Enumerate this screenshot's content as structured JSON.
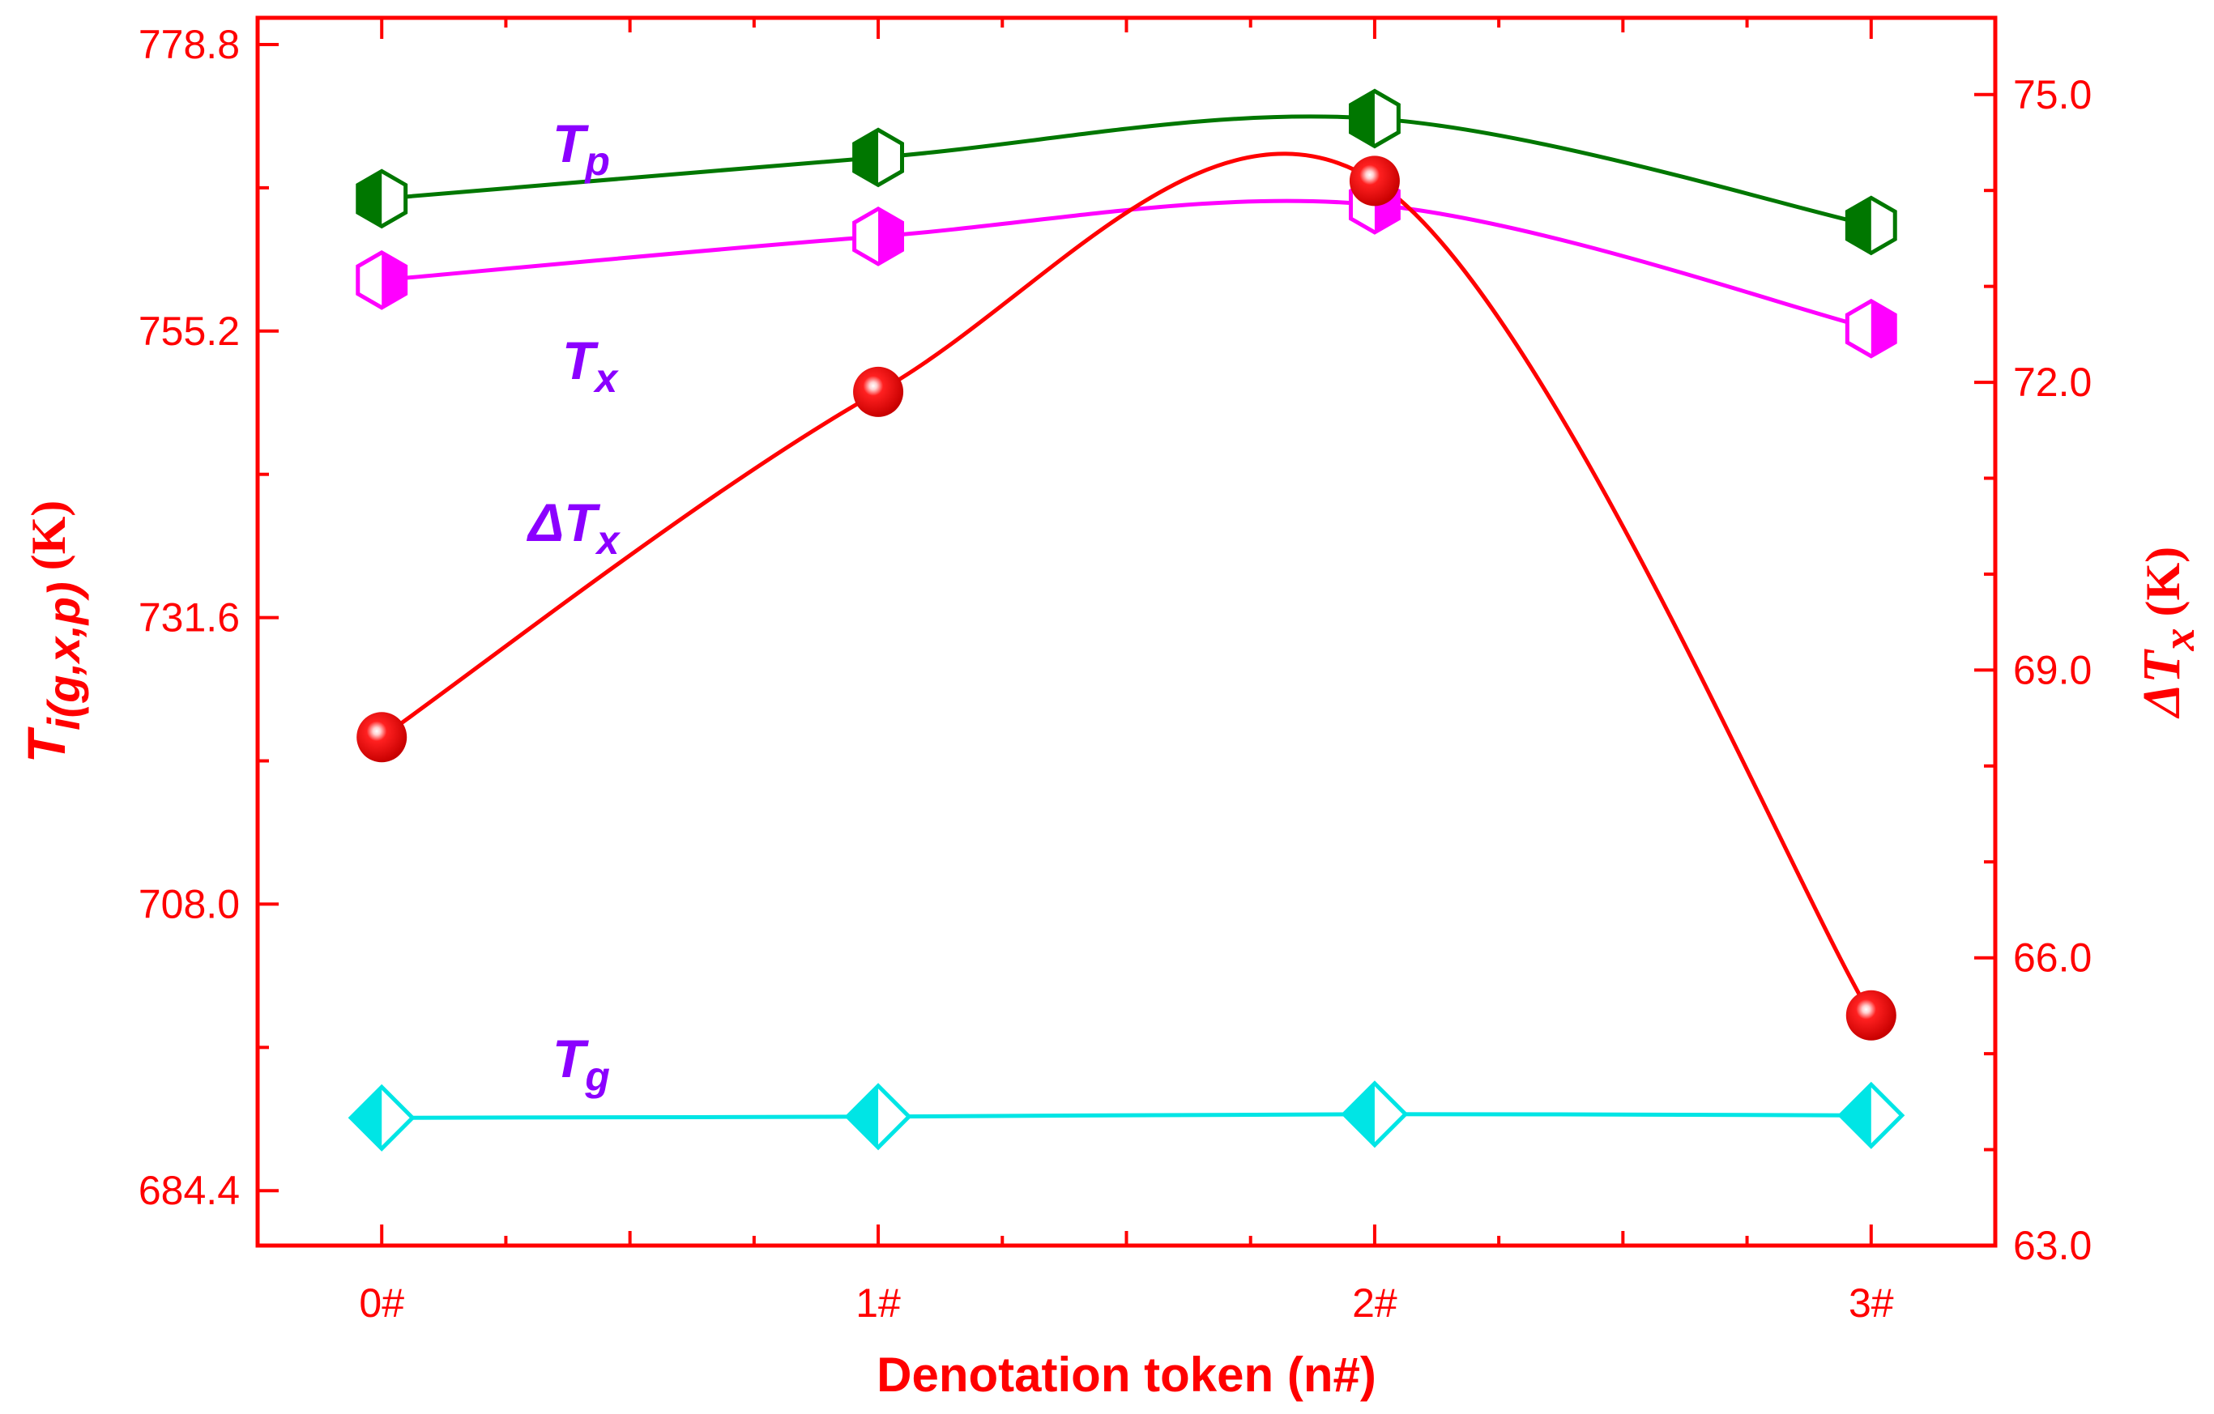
{
  "chart_data": {
    "type": "line",
    "categories": [
      "0#",
      "1#",
      "2#",
      "3#"
    ],
    "x": [
      0,
      1,
      2,
      3
    ],
    "xlabel": "Denotation token (n#)",
    "xlim": [
      -0.25,
      3.25
    ],
    "left_axis": {
      "label_main": "T",
      "label_sub": "i(g,x,p)",
      "label_unit": "(K)",
      "ylim": [
        679.88,
        781.0
      ],
      "ticks": [
        684.4,
        708.0,
        731.6,
        755.2,
        778.8
      ],
      "tick_labels": [
        "684.4",
        "708.0",
        "731.6",
        "755.2",
        "778.8"
      ]
    },
    "right_axis": {
      "label_prefix": "ΔT",
      "label_sub": "x",
      "label_unit": "(K)",
      "ylim": [
        63.0,
        75.8
      ],
      "ticks": [
        63.0,
        66.0,
        69.0,
        72.0,
        75.0
      ],
      "tick_labels": [
        "63.0",
        "66.0",
        "69.0",
        "72.0",
        "75.0"
      ]
    },
    "series": [
      {
        "name": "T",
        "sub": "p",
        "axis": "left",
        "values": [
          766.1,
          769.5,
          772.7,
          763.9
        ],
        "color": "#007700",
        "marker": "hexagon-left-half"
      },
      {
        "name": "T",
        "sub": "x",
        "axis": "left",
        "values": [
          759.4,
          763.0,
          765.6,
          755.4
        ],
        "color": "#ff00ff",
        "marker": "hexagon-right-half"
      },
      {
        "name": "ΔT",
        "sub": "x",
        "axis": "right",
        "values": [
          68.3,
          71.9,
          74.1,
          65.4
        ],
        "color": "#ff0000",
        "marker": "sphere"
      },
      {
        "name": "T",
        "sub": "g",
        "axis": "left",
        "values": [
          690.4,
          690.5,
          690.7,
          690.6
        ],
        "color": "#00e5e5",
        "marker": "diamond-left-half"
      }
    ],
    "grid": false,
    "legend": "inline labels"
  },
  "colors": {
    "axis": "#ff0000",
    "label": "#8b00ff"
  }
}
